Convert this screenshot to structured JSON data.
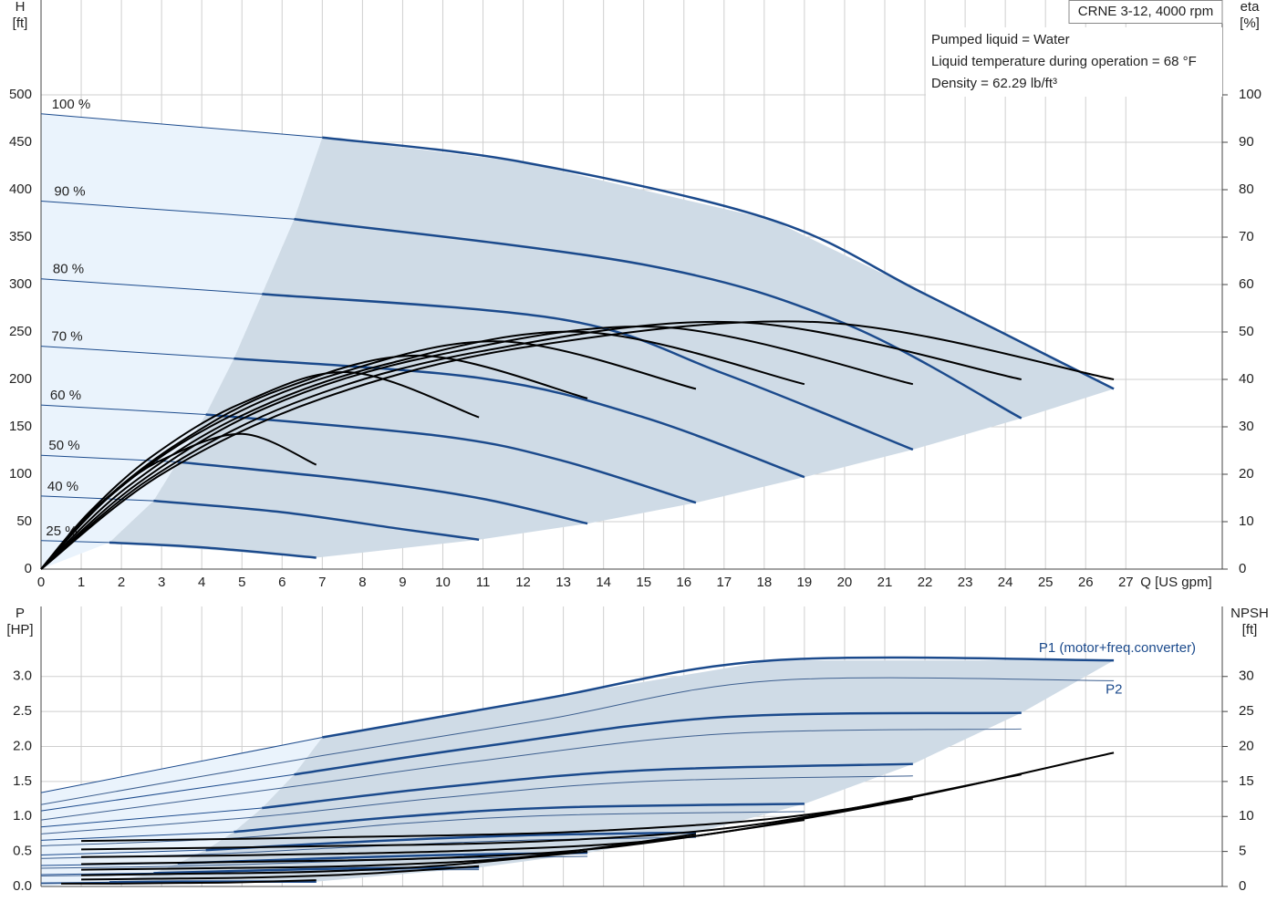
{
  "chart_data": [
    {
      "type": "line",
      "title": "CRNE 3-12, 4000 rpm",
      "notes": [
        "Pumped liquid = Water",
        "Liquid temperature during operation = 68 °F",
        "Density = 62.29 lb/ft³"
      ],
      "xlabel": "Q [US gpm]",
      "ylabel": "H",
      "yunit": "[ft]",
      "y2label": "eta",
      "y2unit": "[%]",
      "xlim": [
        0,
        29.4
      ],
      "xticks": [
        0,
        1,
        2,
        3,
        4,
        5,
        6,
        7,
        8,
        9,
        10,
        11,
        12,
        13,
        14,
        15,
        16,
        17,
        18,
        19,
        20,
        21,
        22,
        23,
        24,
        25,
        26,
        27
      ],
      "ylim": [
        0,
        600
      ],
      "yticks": [
        0,
        50,
        100,
        150,
        200,
        250,
        300,
        350,
        400,
        450,
        500
      ],
      "y2lim": [
        0,
        120
      ],
      "y2ticks": [
        0,
        10,
        20,
        30,
        40,
        50,
        60,
        70,
        80,
        90,
        100
      ],
      "grid": true,
      "series": [
        {
          "name": "100 %",
          "color": "#1b4a8c",
          "x": [
            0,
            7,
            12,
            18.2,
            22,
            26.7
          ],
          "values": [
            480,
            455,
            429,
            368,
            290,
            190
          ]
        },
        {
          "name": "90 %",
          "color": "#1b4a8c",
          "x": [
            0,
            6.3,
            15,
            20,
            24.4
          ],
          "values": [
            388,
            369,
            321,
            259,
            159
          ]
        },
        {
          "name": "80 %",
          "color": "#1b4a8c",
          "x": [
            0,
            5.5,
            13,
            17,
            21.7
          ],
          "values": [
            306,
            290,
            263,
            206,
            126
          ]
        },
        {
          "name": "70 %",
          "color": "#1b4a8c",
          "x": [
            0,
            4.8,
            11,
            15,
            19
          ],
          "values": [
            235,
            222,
            201,
            160,
            97
          ]
        },
        {
          "name": "60 %",
          "color": "#1b4a8c",
          "x": [
            0,
            4.1,
            10,
            13,
            16.3
          ],
          "values": [
            173,
            163,
            140,
            114,
            70
          ]
        },
        {
          "name": "50 %",
          "color": "#1b4a8c",
          "x": [
            0,
            3.4,
            8,
            11,
            13.6
          ],
          "values": [
            120,
            113,
            93,
            74,
            48
          ]
        },
        {
          "name": "40 %",
          "color": "#1b4a8c",
          "x": [
            0,
            2.8,
            6,
            9,
            10.9
          ],
          "values": [
            77,
            72,
            60,
            42,
            31
          ]
        },
        {
          "name": "25 %",
          "color": "#1b4a8c",
          "x": [
            0,
            1.7,
            4,
            6.85
          ],
          "values": [
            30,
            28,
            23,
            12
          ]
        }
      ],
      "eta_series": [
        {
          "axis": "y2",
          "color": "#000000",
          "x": [
            0,
            3,
            7,
            12.2,
            19.5,
            26.7
          ],
          "values": [
            0,
            20,
            36,
            47,
            52,
            40
          ]
        },
        {
          "axis": "y2",
          "color": "#000000",
          "x": [
            0,
            2.7,
            6.3,
            11,
            17.5,
            24.4
          ],
          "values": [
            0,
            19,
            35,
            46,
            52,
            40
          ]
        },
        {
          "axis": "y2",
          "color": "#000000",
          "x": [
            0,
            2.4,
            5.6,
            9.8,
            15.5,
            21.7
          ],
          "values": [
            0,
            18,
            34,
            45,
            51,
            39
          ]
        },
        {
          "axis": "y2",
          "color": "#000000",
          "x": [
            0,
            2.1,
            4.9,
            8.5,
            13.5,
            19
          ],
          "values": [
            0,
            17,
            32,
            43,
            50,
            39
          ]
        },
        {
          "axis": "y2",
          "color": "#000000",
          "x": [
            0,
            1.8,
            4.2,
            7.3,
            11.5,
            16.3
          ],
          "values": [
            0,
            16,
            30,
            41,
            48,
            38
          ]
        },
        {
          "axis": "y2",
          "color": "#000000",
          "x": [
            0,
            1.5,
            3.5,
            6,
            9.5,
            13.6
          ],
          "values": [
            0,
            14,
            27,
            38,
            45,
            36
          ]
        },
        {
          "axis": "y2",
          "color": "#000000",
          "x": [
            0,
            1.2,
            2.8,
            5,
            7.7,
            10.9
          ],
          "values": [
            0,
            12,
            24,
            35,
            41.5,
            32
          ]
        },
        {
          "axis": "y2",
          "color": "#000000",
          "x": [
            0,
            0.8,
            1.8,
            3,
            5,
            6.85
          ],
          "values": [
            0,
            8,
            16,
            23,
            28.5,
            22
          ]
        }
      ]
    },
    {
      "type": "line",
      "ylabel": "P",
      "yunit": "[HP]",
      "y2label": "NPSH",
      "y2unit": "[ft]",
      "p1_label": "P1 (motor+freq.converter)",
      "p2_label": "P2",
      "ylim": [
        0,
        4
      ],
      "yticks": [
        {
          "value": 0,
          "label": "0.0"
        },
        {
          "value": 0.5,
          "label": "0.5"
        },
        {
          "value": 1,
          "label": "1.0"
        },
        {
          "value": 1.5,
          "label": "1.5"
        },
        {
          "value": 2,
          "label": "2.0"
        },
        {
          "value": 2.5,
          "label": "2.5"
        },
        {
          "value": 3,
          "label": "3.0"
        }
      ],
      "y2lim": [
        0,
        40
      ],
      "y2ticks": [
        0,
        5,
        10,
        15,
        20,
        25,
        30
      ],
      "grid": true,
      "series": [
        {
          "color": "#1b4a8c",
          "x": [
            0,
            7,
            12.5,
            18.2,
            26.7
          ],
          "values": [
            1.34,
            2.13,
            2.68,
            3.23,
            3.23
          ]
        },
        {
          "color": "#1b4a8c",
          "x": [
            0,
            6.3,
            11,
            17,
            24.4
          ],
          "values": [
            1.08,
            1.6,
            2.0,
            2.42,
            2.48
          ]
        },
        {
          "color": "#1b4a8c",
          "x": [
            0,
            5.5,
            10,
            15,
            21.7
          ],
          "values": [
            0.85,
            1.12,
            1.42,
            1.66,
            1.75
          ]
        },
        {
          "color": "#1b4a8c",
          "x": [
            0,
            4.8,
            9,
            13,
            19
          ],
          "values": [
            0.66,
            0.78,
            1.0,
            1.13,
            1.18
          ]
        },
        {
          "color": "#1b4a8c",
          "x": [
            0,
            4.1,
            8,
            12,
            16.3
          ],
          "values": [
            0.45,
            0.52,
            0.64,
            0.73,
            0.77
          ]
        },
        {
          "color": "#1b4a8c",
          "x": [
            0,
            3.4,
            7,
            10,
            13.6
          ],
          "values": [
            0.3,
            0.33,
            0.4,
            0.45,
            0.48
          ]
        },
        {
          "color": "#1b4a8c",
          "x": [
            0,
            2.8,
            5.5,
            8,
            10.9
          ],
          "values": [
            0.17,
            0.19,
            0.23,
            0.26,
            0.27
          ]
        },
        {
          "color": "#1b4a8c",
          "x": [
            0,
            1.7,
            3.5,
            5,
            6.85
          ],
          "values": [
            0.05,
            0.06,
            0.07,
            0.07,
            0.07
          ]
        }
      ],
      "p2_series": [
        {
          "color": "#3d5f8f",
          "x": [
            0,
            7,
            12.5,
            18.2,
            26.7
          ],
          "values": [
            1.17,
            1.87,
            2.38,
            2.94,
            2.94
          ]
        },
        {
          "color": "#3d5f8f",
          "x": [
            0,
            6.3,
            11,
            17,
            24.4
          ],
          "values": [
            0.95,
            1.43,
            1.8,
            2.18,
            2.25
          ]
        },
        {
          "color": "#3d5f8f",
          "x": [
            0,
            5.5,
            10,
            15,
            21.7
          ],
          "values": [
            0.75,
            1.0,
            1.27,
            1.5,
            1.58
          ]
        },
        {
          "color": "#3d5f8f",
          "x": [
            0,
            4.8,
            9,
            13,
            19
          ],
          "values": [
            0.58,
            0.69,
            0.9,
            1.02,
            1.07
          ]
        },
        {
          "color": "#3d5f8f",
          "x": [
            0,
            4.1,
            8,
            12,
            16.3
          ],
          "values": [
            0.4,
            0.46,
            0.57,
            0.66,
            0.7
          ]
        },
        {
          "color": "#3d5f8f",
          "x": [
            0,
            3.4,
            7,
            10,
            13.6
          ],
          "values": [
            0.26,
            0.29,
            0.35,
            0.4,
            0.43
          ]
        },
        {
          "color": "#3d5f8f",
          "x": [
            0,
            2.8,
            5.5,
            8,
            10.9
          ],
          "values": [
            0.15,
            0.17,
            0.2,
            0.23,
            0.24
          ]
        },
        {
          "color": "#3d5f8f",
          "x": [
            0,
            1.7,
            3.5,
            5,
            6.85
          ],
          "values": [
            0.04,
            0.05,
            0.06,
            0.06,
            0.06
          ]
        }
      ],
      "npsh_series": [
        {
          "axis": "y2",
          "color": "#000000",
          "x": [
            1,
            7,
            14,
            20,
            26.7
          ],
          "values": [
            6.5,
            7,
            8,
            11,
            19.1
          ]
        },
        {
          "axis": "y2",
          "color": "#000000",
          "x": [
            1,
            6.3,
            12.6,
            18,
            24.4
          ],
          "values": [
            5.3,
            5.7,
            6.5,
            9,
            16
          ]
        },
        {
          "axis": "y2",
          "color": "#000000",
          "x": [
            1,
            5.5,
            11,
            16,
            21.7
          ],
          "values": [
            4.2,
            4.5,
            5.2,
            7,
            12.5
          ]
        },
        {
          "axis": "y2",
          "color": "#000000",
          "x": [
            1,
            4.8,
            9.6,
            14,
            19
          ],
          "values": [
            3.2,
            3.5,
            4,
            5.5,
            9.5
          ]
        },
        {
          "axis": "y2",
          "color": "#000000",
          "x": [
            1,
            4.1,
            8.2,
            12,
            16.3
          ],
          "values": [
            2.4,
            2.6,
            3,
            4.2,
            7.5
          ]
        },
        {
          "axis": "y2",
          "color": "#000000",
          "x": [
            1,
            3.4,
            6.8,
            10,
            13.6
          ],
          "values": [
            1.6,
            1.8,
            2.1,
            3,
            5
          ]
        },
        {
          "axis": "y2",
          "color": "#000000",
          "x": [
            1,
            2.8,
            5.5,
            8,
            10.9
          ],
          "values": [
            1,
            1.1,
            1.3,
            1.8,
            2.9
          ]
        },
        {
          "axis": "y2",
          "color": "#000000",
          "x": [
            0.5,
            1.7,
            3.5,
            5,
            6.85
          ],
          "values": [
            0.4,
            0.4,
            0.5,
            0.6,
            0.9
          ]
        }
      ]
    }
  ]
}
